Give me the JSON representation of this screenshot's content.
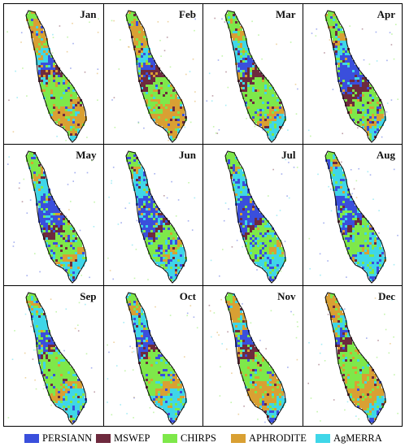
{
  "panels": [
    {
      "month": "Jan",
      "weights": [
        0.1,
        0.12,
        0.33,
        0.33,
        0.12
      ]
    },
    {
      "month": "Feb",
      "weights": [
        0.12,
        0.16,
        0.3,
        0.32,
        0.1
      ]
    },
    {
      "month": "Mar",
      "weights": [
        0.14,
        0.16,
        0.38,
        0.12,
        0.2
      ]
    },
    {
      "month": "Apr",
      "weights": [
        0.32,
        0.16,
        0.28,
        0.1,
        0.14
      ]
    },
    {
      "month": "May",
      "weights": [
        0.34,
        0.08,
        0.3,
        0.06,
        0.22
      ]
    },
    {
      "month": "Jun",
      "weights": [
        0.38,
        0.06,
        0.26,
        0.04,
        0.26
      ]
    },
    {
      "month": "Jul",
      "weights": [
        0.34,
        0.06,
        0.3,
        0.04,
        0.26
      ]
    },
    {
      "month": "Aug",
      "weights": [
        0.34,
        0.06,
        0.26,
        0.04,
        0.3
      ]
    },
    {
      "month": "Sep",
      "weights": [
        0.16,
        0.06,
        0.4,
        0.12,
        0.26
      ]
    },
    {
      "month": "Oct",
      "weights": [
        0.2,
        0.06,
        0.36,
        0.14,
        0.24
      ]
    },
    {
      "month": "Nov",
      "weights": [
        0.16,
        0.14,
        0.3,
        0.28,
        0.12
      ]
    },
    {
      "month": "Dec",
      "weights": [
        0.1,
        0.1,
        0.38,
        0.3,
        0.12
      ]
    }
  ],
  "legend": [
    {
      "label": "PERSIANN",
      "color": "#3a4fdc"
    },
    {
      "label": "MSWEP",
      "color": "#6e2a3e"
    },
    {
      "label": "CHIRPS",
      "color": "#7ee84a"
    },
    {
      "label": "APHRODITE",
      "color": "#d9a033"
    },
    {
      "label": "AgMERRA",
      "color": "#3fd6e8"
    }
  ]
}
